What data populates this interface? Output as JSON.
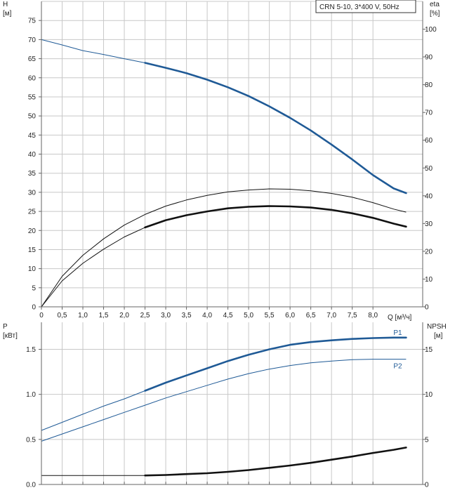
{
  "legend": {
    "text": "CRN 5-10, 3*400 V, 50Hz"
  },
  "colors": {
    "grid": "#c8c8c8",
    "axis": "#666666",
    "blue": "#1f5a96",
    "black": "#111111",
    "thin": "#555555"
  },
  "chart_data": [
    {
      "type": "line",
      "title": "",
      "xlabel": "Q [м³/ч]",
      "ylabel_left": "H\n[м]",
      "ylabel_right": "eta\n[%]",
      "xlim": [
        0,
        9.2
      ],
      "ylim_left": [
        0,
        80
      ],
      "ylim_right": [
        0,
        110
      ],
      "grid": true,
      "legend_position": "top-right",
      "x_ticks": [
        "0",
        "0,5",
        "1,0",
        "1,5",
        "2,0",
        "2,5",
        "3,0",
        "3,5",
        "4,0",
        "4,5",
        "5,0",
        "5,5",
        "6,0",
        "6,5",
        "7,0",
        "7,5",
        "8,0"
      ],
      "y_ticks_left": [
        "0",
        "5",
        "10",
        "15",
        "20",
        "25",
        "30",
        "35",
        "40",
        "45",
        "50",
        "55",
        "60",
        "65",
        "70",
        "75"
      ],
      "y_ticks_right": [
        "0",
        "10",
        "20",
        "30",
        "40",
        "50",
        "60",
        "70",
        "80",
        "90",
        "100"
      ],
      "series": [
        {
          "axis": "left",
          "color": "#1f5a96",
          "thick_from": 2.5,
          "x": [
            0,
            0.5,
            1.0,
            1.5,
            2.0,
            2.5,
            3.0,
            3.5,
            4.0,
            4.5,
            5.0,
            5.5,
            6.0,
            6.5,
            7.0,
            7.5,
            8.0,
            8.5,
            8.8
          ],
          "y": [
            70,
            68.6,
            67.1,
            66.1,
            65.0,
            63.9,
            62.6,
            61.2,
            59.5,
            57.5,
            55.2,
            52.5,
            49.5,
            46.2,
            42.5,
            38.6,
            34.5,
            31.0,
            29.8
          ]
        },
        {
          "axis": "left",
          "color": "#111111",
          "thick_from": 2.5,
          "x": [
            0,
            0.5,
            1.0,
            1.5,
            2.0,
            2.5,
            3.0,
            3.5,
            4.0,
            4.5,
            5.0,
            5.5,
            6.0,
            6.5,
            7.0,
            7.5,
            8.0,
            8.5,
            8.8
          ],
          "y": [
            0,
            6.8,
            11.4,
            15.1,
            18.3,
            20.8,
            22.7,
            24.0,
            25.0,
            25.8,
            26.2,
            26.4,
            26.3,
            26.0,
            25.4,
            24.5,
            23.3,
            21.8,
            21.0
          ]
        },
        {
          "axis": "left",
          "color": "#111111",
          "thick_from": 99,
          "x": [
            0,
            0.5,
            1.0,
            1.5,
            2.0,
            2.5,
            3.0,
            3.5,
            4.0,
            4.5,
            5.0,
            5.5,
            6.0,
            6.5,
            7.0,
            7.5,
            8.0,
            8.5,
            8.8
          ],
          "y": [
            0,
            8.0,
            13.5,
            17.8,
            21.4,
            24.2,
            26.4,
            28.0,
            29.2,
            30.1,
            30.6,
            30.9,
            30.8,
            30.4,
            29.7,
            28.7,
            27.3,
            25.6,
            24.8
          ]
        }
      ]
    },
    {
      "type": "line",
      "title": "",
      "xlabel": "",
      "ylabel_left": "P\n[кВт]",
      "ylabel_right": "NPSH\n[м]",
      "xlim": [
        0,
        9.2
      ],
      "ylim_left": [
        0,
        1.8
      ],
      "ylim_right": [
        0,
        18
      ],
      "grid": true,
      "y_ticks_left": [
        "0.0",
        "0.5",
        "1.0",
        "1.5"
      ],
      "y_ticks_right": [
        "0",
        "5",
        "10",
        "15"
      ],
      "series": [
        {
          "name": "P1",
          "axis": "left",
          "color": "#1f5a96",
          "thick_from": 2.5,
          "x": [
            0,
            0.5,
            1.0,
            1.5,
            2.0,
            2.5,
            3.0,
            3.5,
            4.0,
            4.5,
            5.0,
            5.5,
            6.0,
            6.5,
            7.0,
            7.5,
            8.0,
            8.5,
            8.8
          ],
          "y": [
            0.6,
            0.69,
            0.78,
            0.87,
            0.95,
            1.04,
            1.13,
            1.21,
            1.29,
            1.37,
            1.44,
            1.5,
            1.55,
            1.58,
            1.6,
            1.615,
            1.625,
            1.63,
            1.63
          ]
        },
        {
          "name": "P2",
          "axis": "left",
          "color": "#1f5a96",
          "thick_from": 99,
          "x": [
            0,
            0.5,
            1.0,
            1.5,
            2.0,
            2.5,
            3.0,
            3.5,
            4.0,
            4.5,
            5.0,
            5.5,
            6.0,
            6.5,
            7.0,
            7.5,
            8.0,
            8.5,
            8.8
          ],
          "y": [
            0.48,
            0.56,
            0.64,
            0.72,
            0.8,
            0.88,
            0.96,
            1.03,
            1.1,
            1.17,
            1.23,
            1.28,
            1.32,
            1.35,
            1.37,
            1.385,
            1.39,
            1.39,
            1.39
          ]
        },
        {
          "axis": "right",
          "color": "#111111",
          "thick_from": 2.5,
          "x": [
            0,
            0.5,
            1.0,
            1.5,
            2.0,
            2.5,
            3.0,
            3.5,
            4.0,
            4.5,
            5.0,
            5.5,
            6.0,
            6.5,
            7.0,
            7.5,
            8.0,
            8.5,
            8.8
          ],
          "y": [
            1.0,
            1.0,
            1.0,
            1.0,
            1.0,
            1.0,
            1.05,
            1.15,
            1.25,
            1.4,
            1.6,
            1.85,
            2.1,
            2.4,
            2.75,
            3.1,
            3.5,
            3.85,
            4.1
          ]
        }
      ]
    }
  ]
}
